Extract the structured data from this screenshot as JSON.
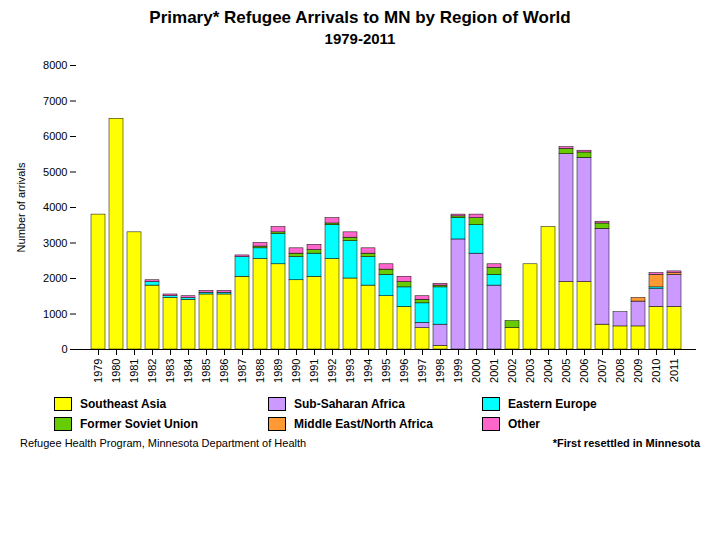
{
  "chart_data": {
    "type": "bar",
    "stacked": true,
    "title": "Primary* Refugee Arrivals to MN by Region of World",
    "subtitle": "1979-2011",
    "y_label": "Number of arrivals",
    "annotations": [
      "Refugee Health Program, Minnesota Department of Health",
      "*First resettled in Minnesota"
    ],
    "categories": [
      "1979",
      "1980",
      "1981",
      "1982",
      "1983",
      "1984",
      "1985",
      "1986",
      "1987",
      "1988",
      "1989",
      "1990",
      "1991",
      "1992",
      "1993",
      "1994",
      "1995",
      "1996",
      "1997",
      "1998",
      "1999",
      "2000",
      "2001",
      "2002",
      "2003",
      "2004",
      "2005",
      "2006",
      "2007",
      "2008",
      "2009",
      "2010",
      "2011"
    ],
    "series": [
      {
        "name": "Southeast Asia",
        "color": "#FFFF00",
        "values": [
          3800,
          6500,
          3300,
          1800,
          1450,
          1400,
          1550,
          1550,
          2050,
          2550,
          2400,
          1950,
          2050,
          2550,
          2000,
          1800,
          1500,
          1200,
          600,
          100,
          0,
          0,
          0,
          600,
          2400,
          3450,
          1900,
          1900,
          700,
          650,
          650,
          1200,
          1200
        ]
      },
      {
        "name": "Sub-Saharan Africa",
        "color": "#CC99FF",
        "values": [
          0,
          0,
          0,
          0,
          0,
          0,
          0,
          0,
          0,
          0,
          0,
          0,
          0,
          0,
          0,
          0,
          0,
          0,
          150,
          600,
          3100,
          2700,
          1800,
          0,
          0,
          0,
          3600,
          3500,
          2700,
          400,
          700,
          500,
          900
        ]
      },
      {
        "name": "Eastern Europe",
        "color": "#00FFFF",
        "values": [
          0,
          0,
          0,
          100,
          50,
          50,
          50,
          50,
          550,
          300,
          850,
          650,
          650,
          950,
          1050,
          800,
          600,
          550,
          550,
          1050,
          600,
          800,
          300,
          0,
          0,
          0,
          0,
          0,
          0,
          0,
          0,
          50,
          0
        ]
      },
      {
        "name": "Former Soviet Union",
        "color": "#66CC00",
        "values": [
          0,
          0,
          0,
          0,
          0,
          0,
          0,
          0,
          0,
          50,
          50,
          100,
          100,
          50,
          100,
          100,
          150,
          150,
          100,
          50,
          50,
          200,
          200,
          200,
          0,
          0,
          150,
          150,
          150,
          0,
          0,
          0,
          0
        ]
      },
      {
        "name": "Middle East/North Africa",
        "color": "#FF9933",
        "values": [
          0,
          0,
          0,
          0,
          0,
          0,
          0,
          0,
          0,
          0,
          0,
          0,
          0,
          0,
          0,
          0,
          0,
          0,
          0,
          0,
          0,
          0,
          0,
          0,
          0,
          0,
          0,
          0,
          0,
          0,
          100,
          350,
          50
        ]
      },
      {
        "name": "Other",
        "color": "#FF66CC",
        "values": [
          0,
          0,
          0,
          50,
          50,
          50,
          50,
          50,
          50,
          100,
          150,
          150,
          150,
          150,
          150,
          150,
          150,
          150,
          100,
          50,
          50,
          100,
          100,
          0,
          0,
          0,
          50,
          50,
          50,
          0,
          0,
          50,
          50
        ]
      }
    ],
    "ylim": [
      0,
      8000
    ],
    "yticks": [
      0,
      1000,
      2000,
      3000,
      4000,
      5000,
      6000,
      7000,
      8000
    ],
    "grid": false,
    "legend": "bottom"
  }
}
